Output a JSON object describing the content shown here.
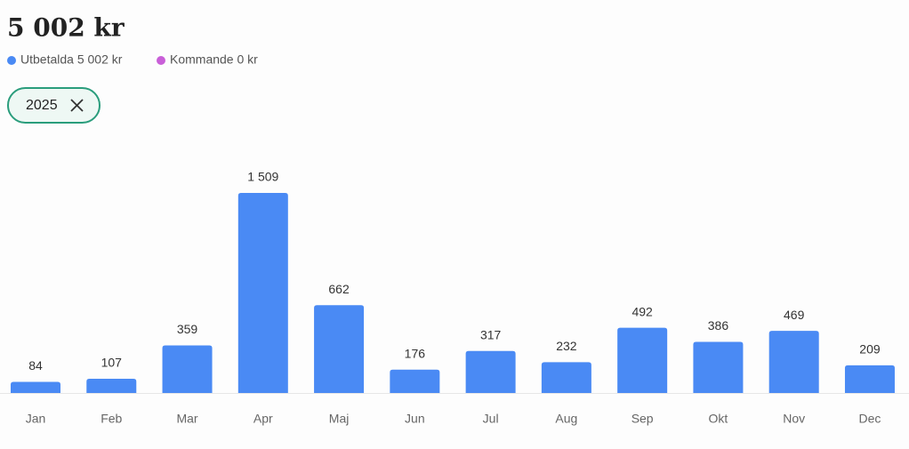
{
  "header": {
    "title": "5 002 kr"
  },
  "legend": [
    {
      "label": "Utbetalda 5 002 kr",
      "color": "#4a8af4"
    },
    {
      "label": "Kommande 0 kr",
      "color": "#c95fd8"
    }
  ],
  "filter_chip": {
    "label": "2025"
  },
  "chart_data": {
    "type": "bar",
    "categories": [
      "Jan",
      "Feb",
      "Mar",
      "Apr",
      "Maj",
      "Jun",
      "Jul",
      "Aug",
      "Sep",
      "Okt",
      "Nov",
      "Dec"
    ],
    "values": [
      84,
      107,
      359,
      1509,
      662,
      176,
      317,
      232,
      492,
      386,
      469,
      209
    ],
    "value_labels": [
      "84",
      "107",
      "359",
      "1 509",
      "662",
      "176",
      "317",
      "232",
      "492",
      "386",
      "469",
      "209"
    ],
    "color": "#4a8af4"
  }
}
